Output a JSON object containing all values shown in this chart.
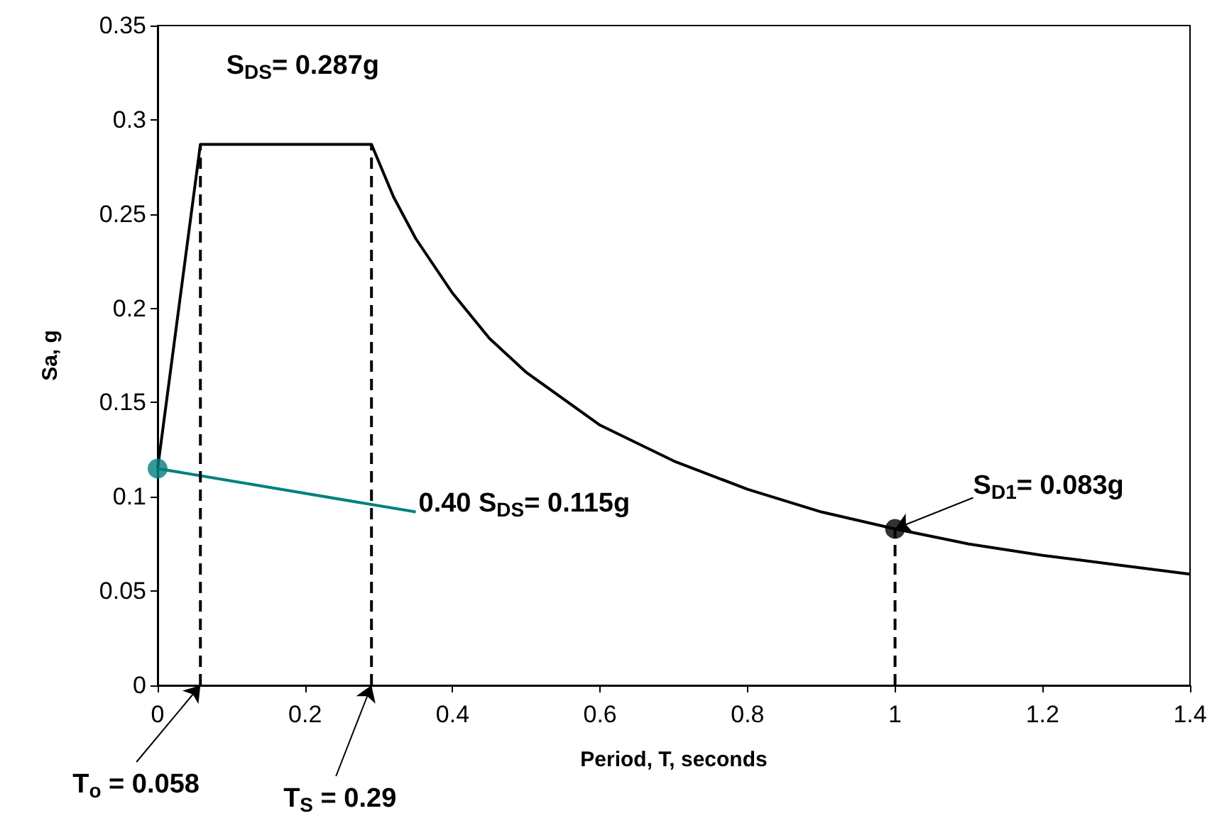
{
  "chart_data": {
    "type": "line",
    "xlabel": "Period, T, seconds",
    "ylabel": "Sa, g",
    "xlim": [
      0,
      1.4
    ],
    "xticks": [
      0,
      0.2,
      0.4,
      0.6,
      0.8,
      1,
      1.2,
      1.4
    ],
    "ylim": [
      0,
      0.35
    ],
    "yticks": [
      0,
      0.05,
      0.1,
      0.15,
      0.2,
      0.25,
      0.3,
      0.35
    ],
    "grid": false,
    "series": [
      {
        "color": "#000000",
        "x": [
          0,
          0.058,
          0.29,
          0.32,
          0.35,
          0.4,
          0.45,
          0.5,
          0.6,
          0.7,
          0.8,
          0.9,
          1.0,
          1.1,
          1.2,
          1.3,
          1.4
        ],
        "values": [
          0.115,
          0.287,
          0.287,
          0.259,
          0.237,
          0.208,
          0.184,
          0.166,
          0.138,
          0.119,
          0.104,
          0.092,
          0.083,
          0.075,
          0.069,
          0.064,
          0.059
        ],
        "marker": "none",
        "line_style": "solid"
      },
      {
        "color": "#008080",
        "x": [
          0,
          0.35
        ],
        "values": [
          0.115,
          0.092
        ],
        "marker": "none",
        "line_style": "solid"
      },
      {
        "type": "scatter",
        "color": "#008080",
        "x": [
          0
        ],
        "values": [
          0.115
        ],
        "marker": "circle"
      },
      {
        "type": "scatter",
        "color": "#000000",
        "x": [
          1.0
        ],
        "values": [
          0.083
        ],
        "marker": "circle"
      },
      {
        "type": "line",
        "color": "#000000",
        "x": [
          0.058,
          0.058
        ],
        "values": [
          0,
          0.287
        ],
        "marker": "none",
        "line_style": "dashed"
      },
      {
        "type": "line",
        "color": "#000000",
        "x": [
          0.29,
          0.29
        ],
        "values": [
          0,
          0.287
        ],
        "marker": "none",
        "line_style": "dashed"
      },
      {
        "type": "line",
        "color": "#000000",
        "x": [
          1.0,
          1.0
        ],
        "values": [
          0,
          0.083
        ],
        "marker": "none",
        "line_style": "dashed"
      }
    ],
    "annotations": [
      {
        "text": "T$_{o}$ = 0.058",
        "x": 0.058,
        "y": 0
      },
      {
        "text": "T$_{S}$ = 0.29",
        "x": 0.29,
        "y": 0
      },
      {
        "text": "S$_{DS}$= 0.287g",
        "x": 0.174,
        "y": 0.287
      },
      {
        "text": "0.40 S$_{DS}$= 0.115g",
        "x": 0.35,
        "y": 0.092
      },
      {
        "text": "S$_{D1}$= 0.083g",
        "x": 1.0,
        "y": 0.083
      }
    ]
  }
}
